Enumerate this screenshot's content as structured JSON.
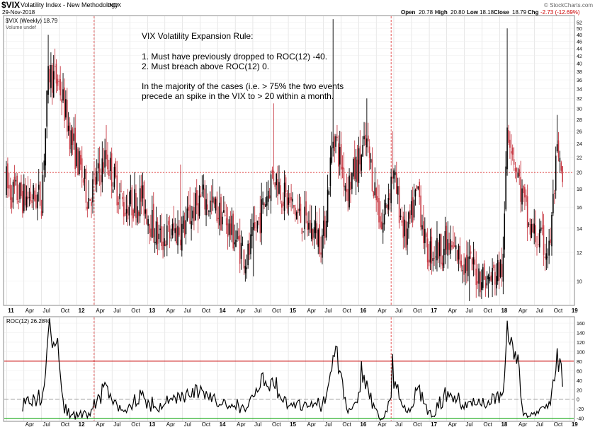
{
  "header": {
    "symbol": "$VIX",
    "name": "Volatility Index - New Methodology",
    "exchange": "INDX",
    "date": "29-Nov-2018",
    "brand": "© StockCharts.com",
    "quote": {
      "open_label": "Open",
      "open": "20.78",
      "high_label": "High",
      "high": "20.80",
      "low_label": "Low",
      "low": "18.18",
      "close_label": "Close",
      "close": "18.79",
      "chg_label": "Chg",
      "chg": "-2.73 (-12.69%)"
    },
    "legend_price": "$VIX (Weekly) 18.79",
    "legend_volume": "Volume undef",
    "legend_roc": "ROC(12) 26.28%"
  },
  "annotation": {
    "title": "VIX Volatility Expansion Rule:",
    "rule1": "1. Must have previously dropped to ROC(12) -40.",
    "rule2": "2. Must breach above ROC(12) 0.",
    "note1": "In the majority of the cases (i.e. > 75% the two events",
    "note2": "precede an spike in the VIX to > 20 within a month."
  },
  "colors": {
    "up": "#000000",
    "down": "#c83c46",
    "roc_line": "#000000",
    "upper_band": "#c80000",
    "lower_band": "#00a000",
    "zero_line": "#999999",
    "event_line": "#e03030",
    "grid": "#d8d8d8"
  },
  "chart_data": [
    {
      "type": "candlestick",
      "title": "$VIX (Weekly)",
      "x_labels": [
        "11",
        "Apr",
        "Jul",
        "Oct",
        "12",
        "Apr",
        "Jul",
        "Oct",
        "13",
        "Apr",
        "Jul",
        "Oct",
        "14",
        "Apr",
        "Jul",
        "Oct",
        "15",
        "Apr",
        "Jul",
        "Oct",
        "16",
        "Apr",
        "Jul",
        "Oct",
        "17",
        "Apr",
        "Jul",
        "Oct",
        "18",
        "Apr",
        "Jul",
        "Oct",
        "19"
      ],
      "y_ticks": [
        10,
        12,
        14,
        16,
        18,
        20,
        22,
        24,
        26,
        28,
        30,
        32,
        34,
        36,
        38,
        40,
        42,
        44,
        46,
        48,
        50,
        52
      ],
      "ylim": [
        8.6,
        54
      ],
      "scale": "log",
      "reference_line": 20,
      "anchor_highs": [
        {
          "date": "2011-08-08",
          "value": 48
        },
        {
          "date": "2012-06-01",
          "value": 27
        },
        {
          "date": "2013-06-20",
          "value": 21
        },
        {
          "date": "2014-10-15",
          "value": 31
        },
        {
          "date": "2015-08-24",
          "value": 53
        },
        {
          "date": "2016-02-11",
          "value": 32
        },
        {
          "date": "2016-06-24",
          "value": 26
        },
        {
          "date": "2018-02-06",
          "value": 50
        },
        {
          "date": "2018-10-24",
          "value": 28.8
        }
      ],
      "anchor_lows": [
        {
          "date": "2014-07-03",
          "value": 10.3
        },
        {
          "date": "2017-07-26",
          "value": 8.8
        },
        {
          "date": "2017-11-03",
          "value": 9.0
        }
      ]
    },
    {
      "type": "line",
      "title": "ROC(12)",
      "x_labels": [
        "Apr",
        "Jul",
        "Oct",
        "12",
        "Apr",
        "Jul",
        "Oct",
        "13",
        "Apr",
        "Jul",
        "Oct",
        "14",
        "Apr",
        "Jul",
        "Oct",
        "15",
        "Apr",
        "Jul",
        "Oct",
        "16",
        "Apr",
        "Jul",
        "Oct",
        "17",
        "Apr",
        "Jul",
        "Oct",
        "18",
        "Apr",
        "Jul",
        "Oct",
        "19"
      ],
      "y_ticks": [
        -40,
        -20,
        0,
        20,
        40,
        60,
        80,
        100,
        120,
        140,
        160
      ],
      "ylim": [
        -45,
        172
      ],
      "last_value": 26.28,
      "upper_line": 80,
      "zero_line": 0,
      "lower_line": -40,
      "peaks": [
        {
          "date": "2011-08-12",
          "value": 170
        },
        {
          "date": "2015-08-28",
          "value": 90
        },
        {
          "date": "2016-01-15",
          "value": 80
        },
        {
          "date": "2016-06-24",
          "value": 95
        },
        {
          "date": "2018-02-09",
          "value": 152
        },
        {
          "date": "2018-10-26",
          "value": 107
        }
      ]
    }
  ]
}
